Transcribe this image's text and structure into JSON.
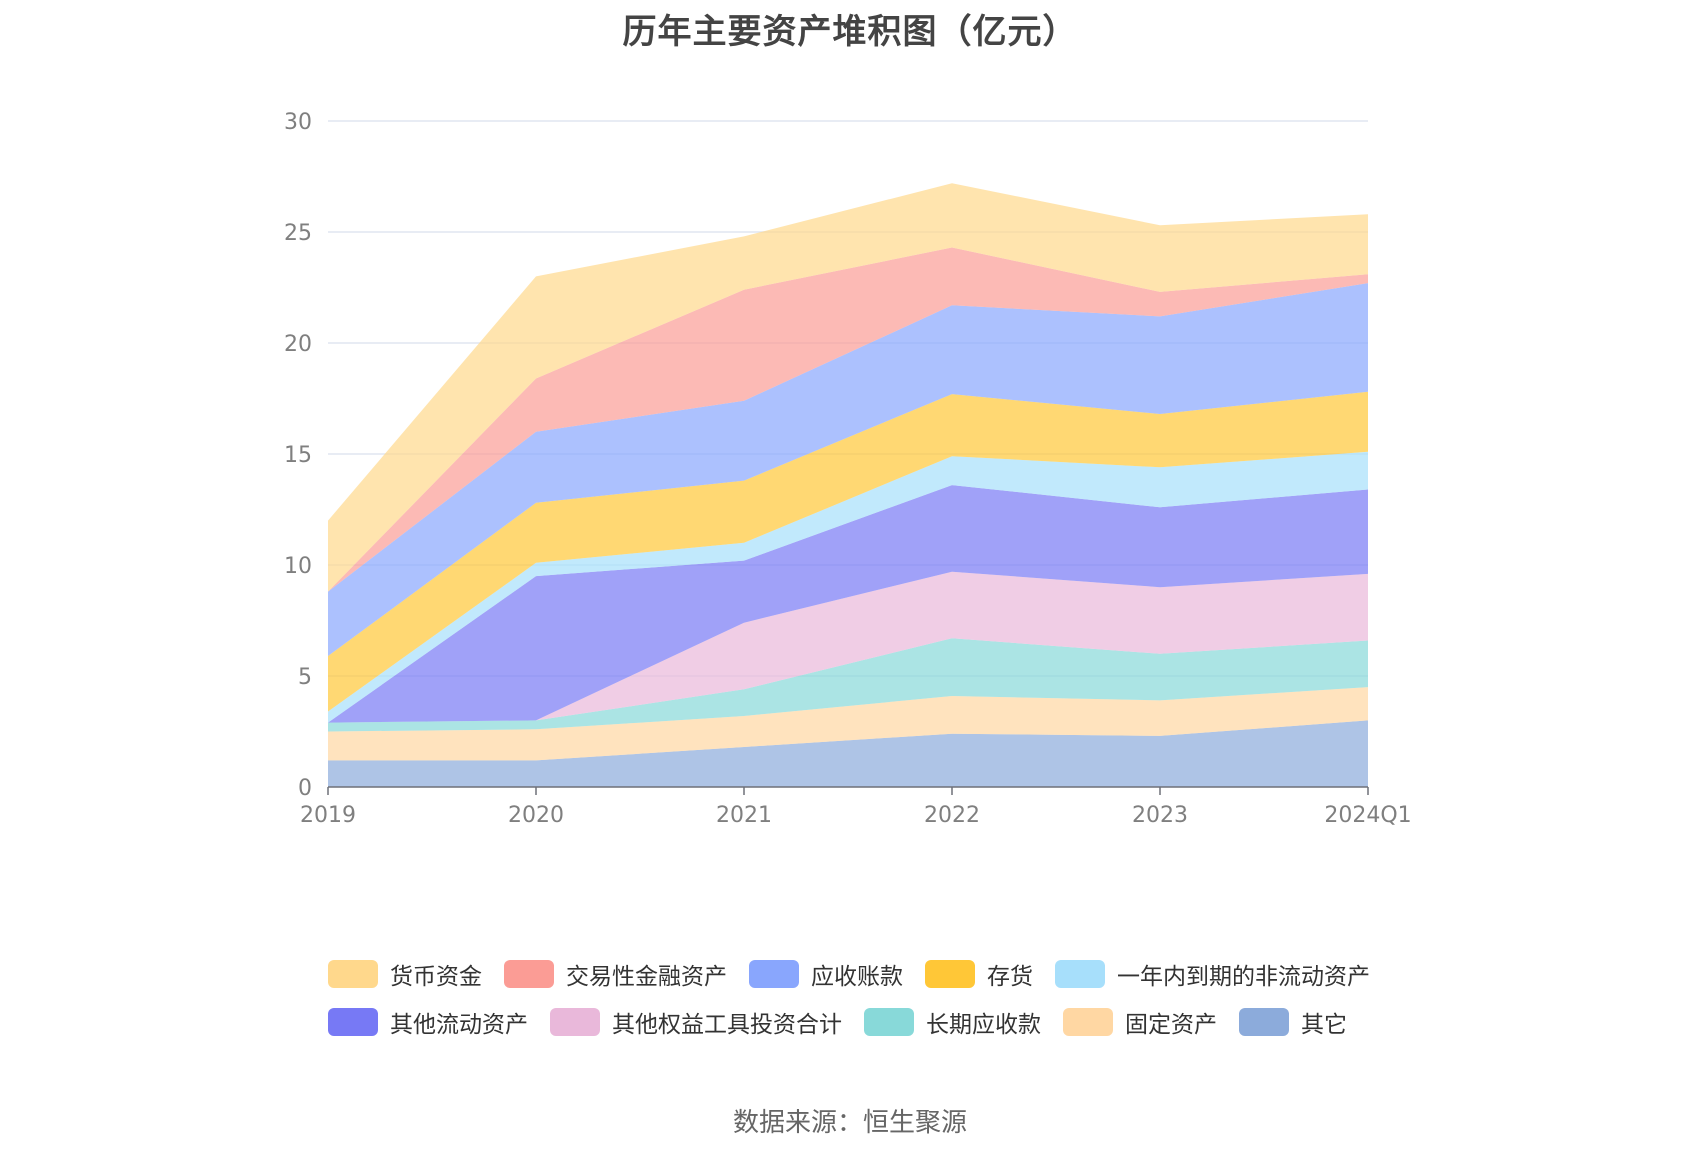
{
  "chart_data": {
    "type": "area",
    "title": "历年主要资产堆积图（亿元）",
    "categories": [
      "2019",
      "2020",
      "2021",
      "2022",
      "2023",
      "2024Q1"
    ],
    "ylim": [
      0,
      30
    ],
    "yticks": [
      "0",
      "5",
      "10",
      "15",
      "20",
      "25",
      "30"
    ],
    "grid": true,
    "legend_position": "bottom",
    "series": [
      {
        "name": "货币资金",
        "color": "#FFD88C",
        "values": [
          3.2,
          4.6,
          2.4,
          2.9,
          3.0,
          2.7
        ]
      },
      {
        "name": "交易性金融资产",
        "color": "#FB9C95",
        "values": [
          0.0,
          2.4,
          5.0,
          2.6,
          1.1,
          0.4
        ]
      },
      {
        "name": "应收账款",
        "color": "#89A6FD",
        "values": [
          2.9,
          3.2,
          3.6,
          4.0,
          4.4,
          4.9
        ]
      },
      {
        "name": "存货",
        "color": "#FFC737",
        "values": [
          2.5,
          2.7,
          2.8,
          2.8,
          2.4,
          2.7
        ]
      },
      {
        "name": "一年内到期的非流动资产",
        "color": "#A7DFFB",
        "values": [
          0.5,
          0.6,
          0.8,
          1.3,
          1.8,
          1.7
        ]
      },
      {
        "name": "其他流动资产",
        "color": "#7779F5",
        "values": [
          0.0,
          6.5,
          2.8,
          3.9,
          3.6,
          3.8
        ]
      },
      {
        "name": "其他权益工具投资合计",
        "color": "#E9B8DA",
        "values": [
          0.0,
          0.0,
          3.0,
          3.0,
          3.0,
          3.0
        ]
      },
      {
        "name": "长期应收款",
        "color": "#88D9D9",
        "values": [
          0.4,
          0.4,
          1.2,
          2.6,
          2.1,
          2.1
        ]
      },
      {
        "name": "固定资产",
        "color": "#FFD7A3",
        "values": [
          1.3,
          1.4,
          1.4,
          1.7,
          1.6,
          1.5
        ]
      },
      {
        "name": "其它",
        "color": "#8CABDB",
        "values": [
          1.2,
          1.2,
          1.8,
          2.4,
          2.3,
          3.0
        ]
      }
    ]
  },
  "legend_rows": [
    [
      "货币资金",
      "交易性金融资产",
      "应收账款",
      "存货",
      "一年内到期的非流动资产"
    ],
    [
      "其他流动资产",
      "其他权益工具投资合计",
      "长期应收款",
      "固定资产",
      "其它"
    ]
  ],
  "source": "数据来源：恒生聚源"
}
